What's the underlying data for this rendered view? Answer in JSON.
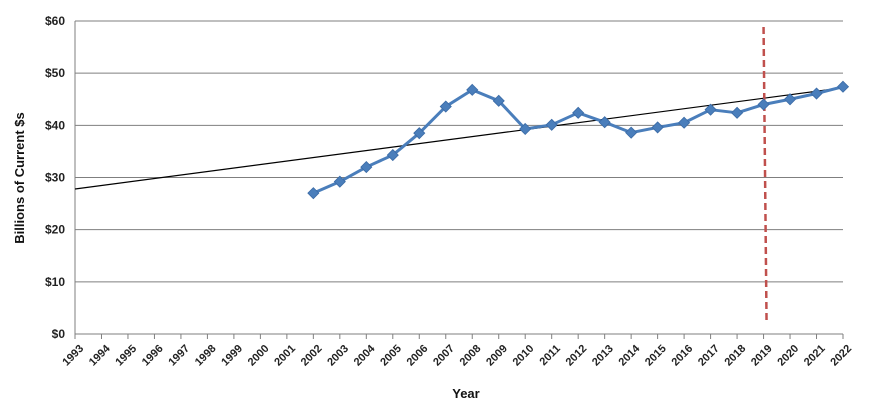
{
  "chart_data": {
    "type": "line",
    "title": "",
    "xlabel": "Year",
    "ylabel": "Billions of Current $s",
    "ylim": [
      0,
      60
    ],
    "y_ticks": [
      "$0",
      "$10",
      "$20",
      "$30",
      "$40",
      "$50",
      "$60"
    ],
    "x_categories": [
      "1993",
      "1994",
      "1995",
      "1996",
      "1997",
      "1998",
      "1999",
      "2000",
      "2001",
      "2002",
      "2003",
      "2004",
      "2005",
      "2006",
      "2007",
      "2008",
      "2009",
      "2010",
      "2011",
      "2012",
      "2013",
      "2014",
      "2015",
      "2016",
      "2017",
      "2018",
      "2019",
      "2020",
      "2021",
      "2022"
    ],
    "grid": "horizontal",
    "series": [
      {
        "color": "#4a7ebb",
        "marker": "diamond",
        "x": [
          2002,
          2003,
          2004,
          2005,
          2006,
          2007,
          2008,
          2009,
          2010,
          2011,
          2012,
          2013,
          2014,
          2015,
          2016,
          2017,
          2018,
          2019,
          2020,
          2021,
          2022
        ],
        "values": [
          27.0,
          29.2,
          32.0,
          34.3,
          38.5,
          43.6,
          46.8,
          44.7,
          39.3,
          40.1,
          42.4,
          40.6,
          38.6,
          39.6,
          40.5,
          43.0,
          42.4,
          44.0,
          45.0,
          46.1,
          47.4
        ]
      }
    ],
    "trendline": {
      "color": "#000000",
      "x": [
        1993,
        2022
      ],
      "values": [
        27.8,
        47.2
      ]
    },
    "vertical_marker": {
      "x": 2019,
      "color": "#c0504d",
      "style": "dashed"
    }
  }
}
